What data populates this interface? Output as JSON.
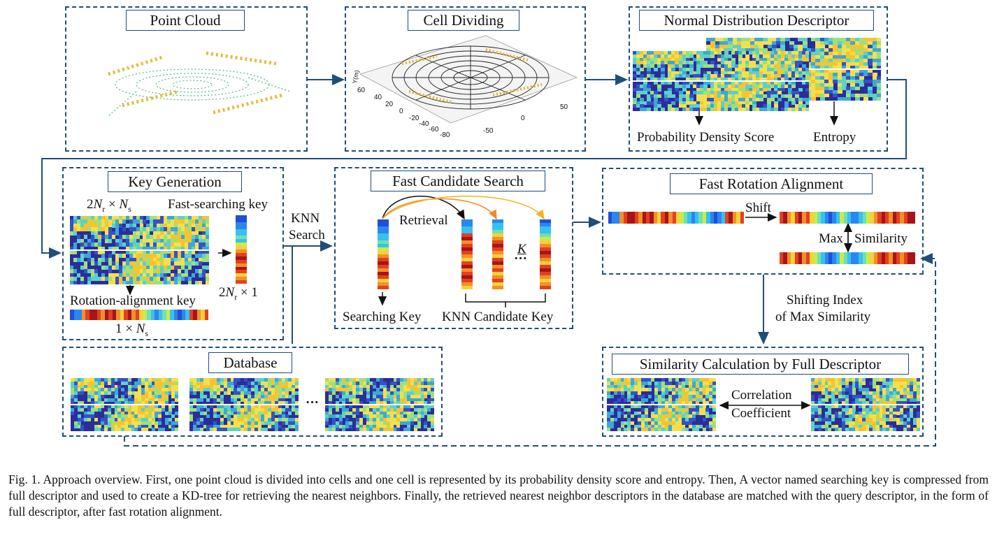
{
  "panels": {
    "point_cloud": {
      "title": "Point Cloud"
    },
    "cell_dividing": {
      "title": "Cell Dividing",
      "axis_ticks_left": [
        "60",
        "40",
        "20",
        "0",
        "-20",
        "-40",
        "-60",
        "-80"
      ],
      "axis_ticks_right": [
        "50",
        "0",
        "-50"
      ],
      "axis_label": "Y(m)"
    },
    "ndd": {
      "title": "Normal Distribution Descriptor",
      "label_score": "Probability Density Score",
      "label_entropy": "Entropy"
    },
    "key_generation": {
      "title": "Key Generation",
      "size_label_pre": "2",
      "size_label_math": "N",
      "size_label_sub": "r",
      "size_label_mid": " × ",
      "size_label_math2": "N",
      "size_label_sub2": "s",
      "fast_key": "Fast-searching key",
      "fast_size_pre": "2",
      "fast_size_math": "N",
      "fast_size_sub": "r",
      "fast_size_post": " × 1",
      "rot_key": "Rotation-alignment key",
      "rot_size_pre": "1 × ",
      "rot_size_math": "N",
      "rot_size_sub": "s"
    },
    "fast_candidate": {
      "title": "Fast Candidate Search",
      "retrieval": "Retrieval",
      "k_label": "K",
      "dots": "···",
      "searching_key": "Searching Key",
      "knn_candidate": "KNN Candidate Key"
    },
    "fast_rotation": {
      "title": "Fast Rotation Alignment",
      "shift": "Shift",
      "max": "Max",
      "similarity": "Similarity"
    },
    "database": {
      "title": "Database",
      "dots": "···"
    },
    "similarity_calc": {
      "title": "Similarity Calculation by Full Descriptor",
      "corr1": "Correlation",
      "corr2": "Coefficient"
    }
  },
  "connectors": {
    "knn_search_1": "KNN",
    "knn_search_2": "Search",
    "shift_index_1": "Shifting Index",
    "shift_index_2": "of Max Similarity"
  },
  "caption": "Fig. 1.    Approach overview. First, one point cloud is divided into cells and one cell is represented by its probability density score and entropy. Then, A vector named searching key is compressed from full descriptor and used to create a KD-tree for retrieving the nearest neighbors. Finally, the retrieved nearest neighbor descriptors in the database are matched with the query descriptor, in the form of full descriptor, after fast rotation alignment.",
  "colors": {
    "frame": "#1f4e79",
    "heat_low": "#2b2d9b",
    "heat_mid": "#3fa7d6",
    "heat_high": "#f4e04d",
    "heat_max": "#d7191c"
  }
}
